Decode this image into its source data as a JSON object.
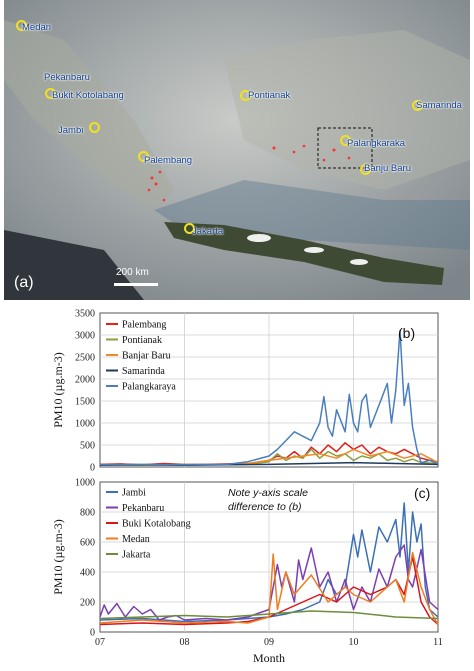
{
  "map": {
    "panel_label": "(a)",
    "scale_label": "200 km",
    "cities": [
      {
        "name": "Medan"
      },
      {
        "name": "Pekanbaru"
      },
      {
        "name": "Bukit Kotolabang"
      },
      {
        "name": "Jambi"
      },
      {
        "name": "Palembang"
      },
      {
        "name": "Jakarta"
      },
      {
        "name": "Pontianak"
      },
      {
        "name": "Samarinda"
      },
      {
        "name": "Palangkaraka"
      },
      {
        "name": "Banju Baru"
      }
    ]
  },
  "chart_data": [
    {
      "type": "line",
      "panel_label": "(b)",
      "ylabel": "PM10 (µg.m-3)",
      "ylim": [
        0,
        3500
      ],
      "yticks": [
        "0",
        "500",
        "1000",
        "1500",
        "2000",
        "2500",
        "3000",
        "3500"
      ],
      "xlim": [
        7,
        11
      ],
      "xticks": [
        "07",
        "08",
        "09",
        "10",
        "11"
      ],
      "grid": true,
      "legend_position": "top-left",
      "series": [
        {
          "name": "Palembang",
          "color": "#e0201c",
          "x": [
            7,
            7.25,
            7.5,
            7.75,
            8,
            8.25,
            8.5,
            8.75,
            9,
            9.1,
            9.2,
            9.3,
            9.4,
            9.5,
            9.6,
            9.7,
            9.8,
            9.9,
            10,
            10.1,
            10.2,
            10.3,
            10.4,
            10.5,
            10.6,
            10.7,
            10.8,
            10.9,
            11
          ],
          "y": [
            60,
            70,
            50,
            80,
            60,
            60,
            70,
            80,
            150,
            250,
            200,
            350,
            200,
            450,
            300,
            500,
            350,
            550,
            400,
            500,
            300,
            450,
            350,
            300,
            400,
            300,
            200,
            150,
            120
          ]
        },
        {
          "name": "Pontianak",
          "color": "#8aa040",
          "x": [
            7,
            7.5,
            8,
            8.5,
            8.75,
            9,
            9.1,
            9.2,
            9.3,
            9.4,
            9.5,
            9.6,
            9.7,
            9.8,
            9.9,
            10,
            10.1,
            10.2,
            10.3,
            10.4,
            10.5,
            10.6,
            10.7,
            10.8,
            11
          ],
          "y": [
            50,
            40,
            60,
            50,
            60,
            120,
            300,
            150,
            250,
            200,
            400,
            200,
            350,
            250,
            300,
            150,
            250,
            200,
            300,
            150,
            200,
            120,
            180,
            100,
            80
          ]
        },
        {
          "name": "Banjar Baru",
          "color": "#f08a24",
          "x": [
            7,
            7.5,
            8,
            8.5,
            8.75,
            9,
            9.2,
            9.4,
            9.6,
            9.8,
            10,
            10.2,
            10.4,
            10.6,
            10.8,
            11
          ],
          "y": [
            40,
            50,
            40,
            60,
            80,
            150,
            200,
            250,
            300,
            200,
            400,
            250,
            350,
            200,
            300,
            100
          ]
        },
        {
          "name": "Samarinda",
          "color": "#1f3a5f",
          "x": [
            7,
            7.5,
            8,
            8.5,
            9,
            9.5,
            10,
            10.5,
            11
          ],
          "y": [
            40,
            50,
            40,
            50,
            60,
            80,
            100,
            80,
            60
          ]
        },
        {
          "name": "Palangkaraya",
          "color": "#4a7fbf",
          "x": [
            7,
            7.5,
            8,
            8.5,
            8.75,
            9,
            9.1,
            9.2,
            9.3,
            9.4,
            9.5,
            9.6,
            9.65,
            9.7,
            9.75,
            9.8,
            9.9,
            9.95,
            10,
            10.05,
            10.1,
            10.15,
            10.2,
            10.3,
            10.4,
            10.45,
            10.5,
            10.55,
            10.6,
            10.65,
            10.7,
            10.75,
            10.8,
            10.9,
            11
          ],
          "y": [
            50,
            60,
            50,
            60,
            120,
            250,
            400,
            600,
            800,
            700,
            600,
            1000,
            1600,
            900,
            700,
            1300,
            800,
            1650,
            1000,
            800,
            1500,
            1650,
            900,
            1400,
            1900,
            1000,
            1750,
            3100,
            1400,
            1900,
            900,
            400,
            100,
            150,
            80
          ]
        }
      ]
    },
    {
      "type": "line",
      "panel_label": "(c)",
      "ylabel": "PM10 (µg.m-3)",
      "ylim": [
        0,
        1000
      ],
      "yticks": [
        "0",
        "200",
        "400",
        "600",
        "800",
        "1000"
      ],
      "xlim": [
        7,
        11
      ],
      "xticks": [
        "07",
        "08",
        "09",
        "10",
        "11"
      ],
      "xlabel": "Month",
      "grid": true,
      "legend_position": "top-left",
      "note": "Note y-axis scale difference to (b)",
      "series": [
        {
          "name": "Jambi",
          "color": "#3b6fb6",
          "x": [
            7,
            7.5,
            8,
            8.5,
            8.75,
            9,
            9.2,
            9.4,
            9.6,
            9.7,
            9.8,
            9.9,
            10,
            10.05,
            10.1,
            10.2,
            10.3,
            10.4,
            10.5,
            10.55,
            10.6,
            10.65,
            10.7,
            10.75,
            10.8,
            10.85,
            10.9,
            11
          ],
          "y": [
            80,
            90,
            70,
            80,
            90,
            100,
            120,
            150,
            200,
            350,
            250,
            300,
            650,
            500,
            680,
            400,
            700,
            600,
            750,
            500,
            860,
            400,
            800,
            600,
            720,
            300,
            150,
            100
          ]
        },
        {
          "name": "Pekanbaru",
          "color": "#7b3fb0",
          "x": [
            7,
            7.05,
            7.1,
            7.2,
            7.3,
            7.4,
            7.5,
            7.6,
            7.7,
            7.8,
            7.9,
            8,
            8.25,
            8.5,
            8.75,
            9,
            9.1,
            9.15,
            9.2,
            9.3,
            9.35,
            9.4,
            9.5,
            9.6,
            9.7,
            9.8,
            9.9,
            10,
            10.1,
            10.2,
            10.3,
            10.4,
            10.5,
            10.6,
            10.65,
            10.7,
            10.8,
            10.9,
            11
          ],
          "y": [
            100,
            180,
            120,
            190,
            100,
            170,
            120,
            150,
            80,
            100,
            110,
            80,
            90,
            80,
            100,
            150,
            450,
            300,
            400,
            200,
            480,
            350,
            560,
            300,
            400,
            200,
            350,
            150,
            300,
            200,
            420,
            300,
            500,
            580,
            350,
            300,
            550,
            200,
            150
          ]
        },
        {
          "name": "Buki Kotalobang",
          "color": "#d8141b",
          "x": [
            7,
            7.5,
            8,
            8.5,
            8.75,
            9,
            9.2,
            9.4,
            9.6,
            9.8,
            10,
            10.2,
            10.4,
            10.5,
            10.6,
            10.7,
            10.75,
            10.8,
            10.9,
            11
          ],
          "y": [
            50,
            60,
            50,
            60,
            70,
            100,
            150,
            200,
            250,
            200,
            300,
            250,
            300,
            350,
            250,
            500,
            350,
            200,
            100,
            50
          ]
        },
        {
          "name": "Medan",
          "color": "#f07c20",
          "x": [
            7,
            7.5,
            8,
            8.5,
            8.75,
            9,
            9.05,
            9.1,
            9.2,
            9.3,
            9.5,
            9.7,
            9.9,
            10,
            10.2,
            10.4,
            10.5,
            10.6,
            10.7,
            10.8,
            10.9,
            11
          ],
          "y": [
            60,
            80,
            60,
            70,
            60,
            100,
            520,
            150,
            400,
            250,
            380,
            200,
            300,
            250,
            200,
            300,
            350,
            200,
            530,
            300,
            150,
            50
          ]
        },
        {
          "name": "Jakarta",
          "color": "#6b8e3a",
          "x": [
            7,
            7.5,
            8,
            8.5,
            9,
            9.5,
            10,
            10.5,
            11
          ],
          "y": [
            90,
            100,
            110,
            100,
            120,
            140,
            130,
            100,
            90
          ]
        }
      ]
    }
  ]
}
